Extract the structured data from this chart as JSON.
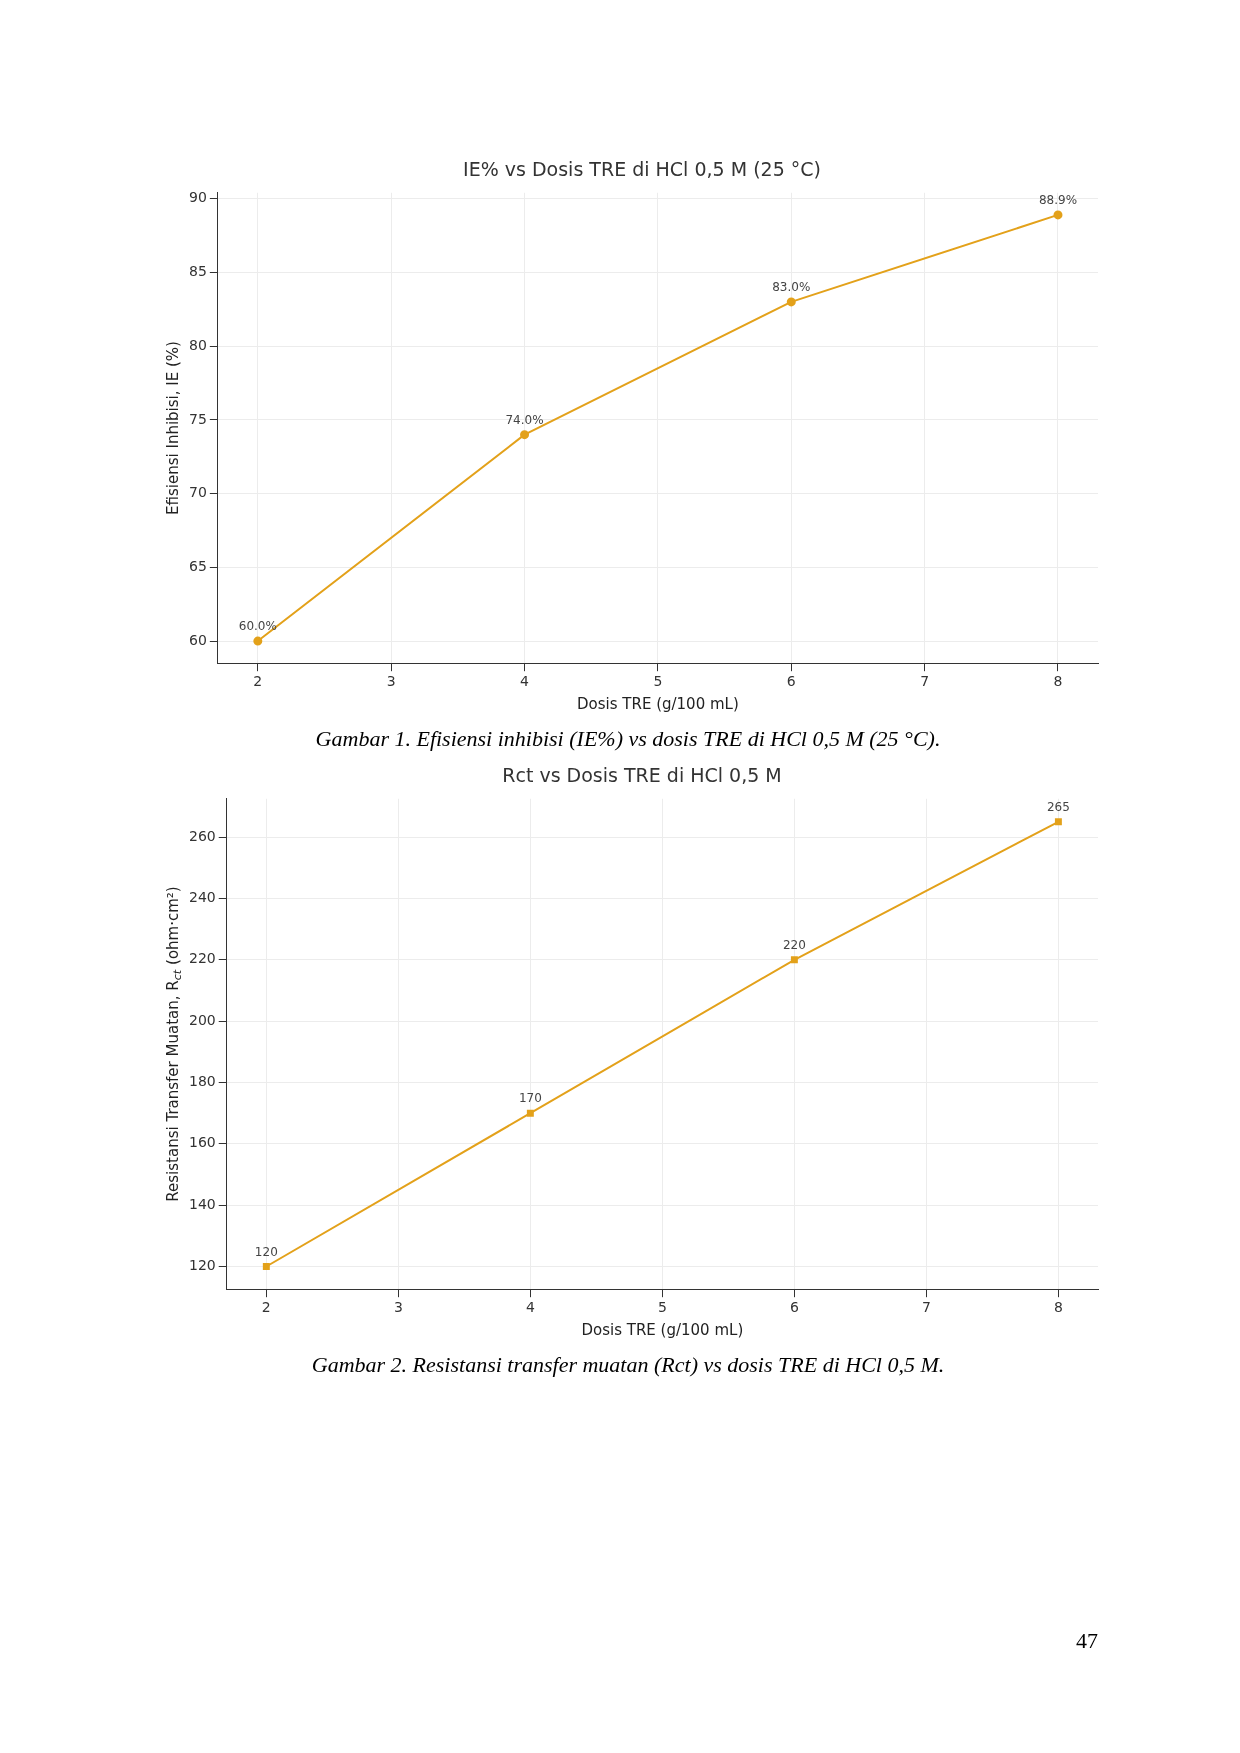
{
  "chart_data": [
    {
      "type": "line",
      "title": "IE% vs Dosis TRE di HCl 0,5 M (25 °C)",
      "xlabel": "Dosis TRE (g/100 mL)",
      "ylabel": "Efisiensi Inhibisi, IE (%)",
      "x": [
        2,
        4,
        6,
        8
      ],
      "series": [
        {
          "color": "#e3a11a",
          "values": [
            60.0,
            74.0,
            83.0,
            88.9
          ],
          "value_labels": [
            "60.0%",
            "74.0%",
            "83.0%",
            "88.9%"
          ]
        }
      ],
      "xlim": [
        1.7,
        8.3
      ],
      "xticks": [
        2,
        3,
        4,
        5,
        6,
        7,
        8
      ],
      "ylim": [
        58.5,
        90.4
      ],
      "yticks": [
        60,
        65,
        70,
        75,
        80,
        85,
        90
      ],
      "grid": true,
      "marker": "circle",
      "annotations": [
        "Gambar 1. Efisiensi inhibisi (IE%) vs dosis TRE di HCl 0,5 M (25 °C)."
      ]
    },
    {
      "type": "line",
      "title": "Rct vs Dosis TRE di HCl 0,5 M",
      "xlabel": "Dosis TRE (g/100 mL)",
      "ylabel": "Resistansi Transfer Muatan, R$_{ct}$ (ohm·cm²)",
      "x": [
        2,
        4,
        6,
        8
      ],
      "series": [
        {
          "color": "#e3a11a",
          "values": [
            120,
            170,
            220,
            265
          ]
        }
      ],
      "xlim": [
        1.7,
        8.3
      ],
      "xticks": [
        2,
        3,
        4,
        5,
        6,
        7,
        8
      ],
      "ylim": [
        112.6,
        272.5
      ],
      "yticks": [
        120,
        140,
        160,
        180,
        200,
        220,
        240,
        260
      ],
      "grid": true,
      "marker": "square",
      "data_labels": true,
      "annotations": [
        "Gambar 2. Resistansi transfer muatan (Rct) vs dosis TRE di HCl 0,5 M.",
        "47"
      ]
    }
  ]
}
